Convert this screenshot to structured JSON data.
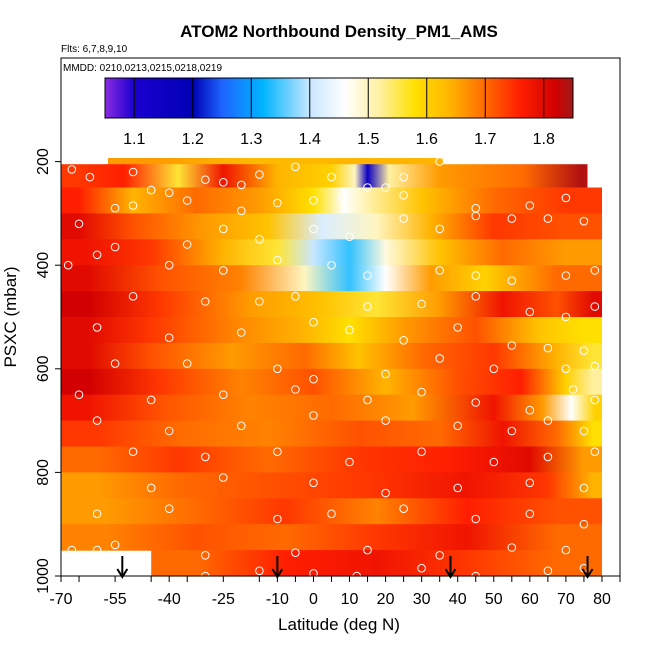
{
  "chart_data": {
    "type": "heatmap",
    "title": "ATOM2 Northbound Density_PM1_AMS",
    "subtitle_flights": "Flts: 6,7,8,9,10",
    "subtitle_dates": "MMDD: 0210,0213,0215,0218,0219",
    "xlabel": "Latitude (deg N)",
    "ylabel": "PSXC (mbar)",
    "xlim": [
      -70,
      85
    ],
    "ylim": [
      1000,
      0
    ],
    "x_ticks": [
      "-70",
      "-55",
      "-40",
      "-25",
      "-10",
      "0",
      "10",
      "20",
      "30",
      "40",
      "50",
      "60",
      "70",
      "80"
    ],
    "x_tick_values": [
      -70,
      -55,
      -40,
      -25,
      -10,
      0,
      10,
      20,
      30,
      40,
      50,
      60,
      70,
      80
    ],
    "y_ticks": [
      "200",
      "400",
      "600",
      "800",
      "1000"
    ],
    "y_tick_values": [
      200,
      400,
      600,
      800,
      1000
    ],
    "colorbar": {
      "range": [
        1.05,
        1.85
      ],
      "ticks": [
        "1.1",
        "1.2",
        "1.3",
        "1.4",
        "1.5",
        "1.6",
        "1.7",
        "1.8"
      ],
      "tick_values": [
        1.1,
        1.2,
        1.3,
        1.4,
        1.5,
        1.6,
        1.7,
        1.8
      ],
      "stops": [
        {
          "v": 1.05,
          "c": "#8a2be2"
        },
        {
          "v": 1.1,
          "c": "#1a00d0"
        },
        {
          "v": 1.2,
          "c": "#0000b4"
        },
        {
          "v": 1.25,
          "c": "#1e64ff"
        },
        {
          "v": 1.32,
          "c": "#00b4ff"
        },
        {
          "v": 1.4,
          "c": "#c8e6ff"
        },
        {
          "v": 1.46,
          "c": "#ffffff"
        },
        {
          "v": 1.52,
          "c": "#fff0a0"
        },
        {
          "v": 1.58,
          "c": "#ffe000"
        },
        {
          "v": 1.64,
          "c": "#ffb400"
        },
        {
          "v": 1.7,
          "c": "#ff6a00"
        },
        {
          "v": 1.76,
          "c": "#ff1e00"
        },
        {
          "v": 1.82,
          "c": "#d20000"
        },
        {
          "v": 1.85,
          "c": "#a01a1a"
        }
      ]
    },
    "bands": [
      {
        "p_top": 165,
        "p_bot": 205,
        "segments": [
          [
            -57,
            -30,
            1.66
          ],
          [
            -30,
            0,
            1.63
          ],
          [
            0,
            36,
            1.64
          ]
        ]
      },
      {
        "p_top": 205,
        "p_bot": 250,
        "segments": [
          [
            -70,
            -60,
            1.74
          ],
          [
            -60,
            -45,
            1.76
          ],
          [
            -45,
            -30,
            1.56
          ],
          [
            -30,
            -20,
            1.78
          ],
          [
            -20,
            0,
            1.64
          ],
          [
            0,
            10,
            1.6
          ],
          [
            10,
            13,
            1.5
          ],
          [
            13,
            17,
            1.15
          ],
          [
            17,
            25,
            1.52
          ],
          [
            25,
            45,
            1.66
          ],
          [
            45,
            72,
            1.7
          ],
          [
            72,
            76,
            1.84
          ]
        ]
      },
      {
        "p_top": 250,
        "p_bot": 300,
        "segments": [
          [
            -70,
            -60,
            1.76
          ],
          [
            -60,
            -40,
            1.64
          ],
          [
            -40,
            -25,
            1.7
          ],
          [
            -25,
            -5,
            1.66
          ],
          [
            -5,
            5,
            1.58
          ],
          [
            5,
            12,
            1.46
          ],
          [
            12,
            20,
            1.52
          ],
          [
            20,
            40,
            1.62
          ],
          [
            40,
            60,
            1.7
          ],
          [
            60,
            80,
            1.74
          ]
        ]
      },
      {
        "p_top": 300,
        "p_bot": 350,
        "segments": [
          [
            -70,
            -60,
            1.8
          ],
          [
            -60,
            -40,
            1.72
          ],
          [
            -40,
            -20,
            1.66
          ],
          [
            -20,
            -5,
            1.62
          ],
          [
            -5,
            10,
            1.42
          ],
          [
            10,
            25,
            1.5
          ],
          [
            25,
            40,
            1.64
          ],
          [
            40,
            60,
            1.74
          ],
          [
            60,
            80,
            1.72
          ]
        ]
      },
      {
        "p_top": 350,
        "p_bot": 400,
        "segments": [
          [
            -70,
            -55,
            1.78
          ],
          [
            -55,
            -35,
            1.74
          ],
          [
            -35,
            -15,
            1.64
          ],
          [
            -15,
            -5,
            1.56
          ],
          [
            -5,
            5,
            1.4
          ],
          [
            5,
            15,
            1.34
          ],
          [
            15,
            25,
            1.48
          ],
          [
            25,
            45,
            1.62
          ],
          [
            45,
            60,
            1.7
          ],
          [
            60,
            80,
            1.66
          ]
        ]
      },
      {
        "p_top": 400,
        "p_bot": 450,
        "segments": [
          [
            -70,
            -55,
            1.8
          ],
          [
            -55,
            -30,
            1.72
          ],
          [
            -30,
            -10,
            1.68
          ],
          [
            -10,
            5,
            1.5
          ],
          [
            5,
            15,
            1.34
          ],
          [
            15,
            25,
            1.46
          ],
          [
            25,
            40,
            1.66
          ],
          [
            40,
            55,
            1.6
          ],
          [
            55,
            80,
            1.7
          ]
        ]
      },
      {
        "p_top": 450,
        "p_bot": 500,
        "segments": [
          [
            -70,
            -55,
            1.82
          ],
          [
            -55,
            -30,
            1.74
          ],
          [
            -30,
            -5,
            1.66
          ],
          [
            -5,
            10,
            1.62
          ],
          [
            10,
            25,
            1.56
          ],
          [
            25,
            45,
            1.66
          ],
          [
            45,
            60,
            1.78
          ],
          [
            60,
            75,
            1.72
          ],
          [
            75,
            80,
            1.8
          ]
        ]
      },
      {
        "p_top": 500,
        "p_bot": 550,
        "segments": [
          [
            -70,
            -55,
            1.8
          ],
          [
            -55,
            -35,
            1.74
          ],
          [
            -35,
            -10,
            1.68
          ],
          [
            -10,
            5,
            1.64
          ],
          [
            5,
            15,
            1.58
          ],
          [
            15,
            35,
            1.66
          ],
          [
            35,
            55,
            1.72
          ],
          [
            55,
            70,
            1.62
          ],
          [
            70,
            80,
            1.58
          ]
        ]
      },
      {
        "p_top": 550,
        "p_bot": 600,
        "segments": [
          [
            -70,
            -55,
            1.8
          ],
          [
            -55,
            -35,
            1.72
          ],
          [
            -35,
            -10,
            1.66
          ],
          [
            -10,
            5,
            1.7
          ],
          [
            5,
            20,
            1.62
          ],
          [
            20,
            40,
            1.7
          ],
          [
            40,
            60,
            1.74
          ],
          [
            60,
            75,
            1.64
          ],
          [
            75,
            80,
            1.56
          ]
        ]
      },
      {
        "p_top": 600,
        "p_bot": 650,
        "segments": [
          [
            -70,
            -55,
            1.82
          ],
          [
            -55,
            -30,
            1.74
          ],
          [
            -30,
            -10,
            1.68
          ],
          [
            -10,
            10,
            1.72
          ],
          [
            10,
            30,
            1.64
          ],
          [
            30,
            50,
            1.72
          ],
          [
            50,
            65,
            1.76
          ],
          [
            65,
            75,
            1.6
          ],
          [
            75,
            80,
            1.52
          ]
        ]
      },
      {
        "p_top": 650,
        "p_bot": 700,
        "segments": [
          [
            -70,
            -55,
            1.78
          ],
          [
            -55,
            -30,
            1.72
          ],
          [
            -30,
            -5,
            1.68
          ],
          [
            -5,
            15,
            1.7
          ],
          [
            15,
            40,
            1.66
          ],
          [
            40,
            60,
            1.78
          ],
          [
            60,
            67,
            1.66
          ],
          [
            67,
            76,
            1.46
          ],
          [
            76,
            80,
            1.6
          ]
        ]
      },
      {
        "p_top": 700,
        "p_bot": 750,
        "segments": [
          [
            -70,
            -50,
            1.74
          ],
          [
            -50,
            -25,
            1.7
          ],
          [
            -25,
            0,
            1.68
          ],
          [
            0,
            25,
            1.72
          ],
          [
            25,
            45,
            1.7
          ],
          [
            45,
            60,
            1.78
          ],
          [
            60,
            75,
            1.7
          ],
          [
            75,
            80,
            1.58
          ]
        ]
      },
      {
        "p_top": 750,
        "p_bot": 800,
        "segments": [
          [
            -70,
            -50,
            1.7
          ],
          [
            -50,
            -25,
            1.74
          ],
          [
            -25,
            0,
            1.7
          ],
          [
            0,
            25,
            1.74
          ],
          [
            25,
            50,
            1.76
          ],
          [
            50,
            70,
            1.8
          ],
          [
            70,
            80,
            1.66
          ]
        ]
      },
      {
        "p_top": 800,
        "p_bot": 850,
        "segments": [
          [
            -70,
            -50,
            1.66
          ],
          [
            -50,
            -25,
            1.7
          ],
          [
            -25,
            0,
            1.72
          ],
          [
            0,
            30,
            1.74
          ],
          [
            30,
            55,
            1.78
          ],
          [
            55,
            75,
            1.74
          ],
          [
            75,
            80,
            1.64
          ]
        ]
      },
      {
        "p_top": 850,
        "p_bot": 900,
        "segments": [
          [
            -70,
            -45,
            1.66
          ],
          [
            -45,
            -20,
            1.7
          ],
          [
            -20,
            5,
            1.74
          ],
          [
            5,
            30,
            1.68
          ],
          [
            30,
            55,
            1.76
          ],
          [
            55,
            80,
            1.72
          ]
        ]
      },
      {
        "p_top": 900,
        "p_bot": 950,
        "segments": [
          [
            -70,
            -45,
            1.68
          ],
          [
            -45,
            -20,
            1.72
          ],
          [
            -20,
            5,
            1.7
          ],
          [
            5,
            30,
            1.74
          ],
          [
            30,
            55,
            1.78
          ],
          [
            55,
            80,
            1.7
          ]
        ]
      },
      {
        "p_top": 950,
        "p_bot": 1000,
        "segments": [
          [
            -45,
            -20,
            1.7
          ],
          [
            -20,
            5,
            1.76
          ],
          [
            5,
            30,
            1.78
          ],
          [
            30,
            55,
            1.74
          ],
          [
            55,
            80,
            1.7
          ]
        ]
      }
    ],
    "points": [
      [
        -67,
        215
      ],
      [
        -62,
        230
      ],
      [
        -58,
        190
      ],
      [
        -50,
        220
      ],
      [
        -45,
        255
      ],
      [
        -40,
        260
      ],
      [
        -30,
        235
      ],
      [
        -25,
        240
      ],
      [
        -20,
        245
      ],
      [
        -15,
        225
      ],
      [
        -5,
        210
      ],
      [
        5,
        230
      ],
      [
        15,
        250
      ],
      [
        20,
        250
      ],
      [
        25,
        230
      ],
      [
        35,
        200
      ],
      [
        -55,
        290
      ],
      [
        -50,
        285
      ],
      [
        -35,
        275
      ],
      [
        -20,
        295
      ],
      [
        -10,
        280
      ],
      [
        0,
        275
      ],
      [
        8,
        270
      ],
      [
        25,
        265
      ],
      [
        45,
        290
      ],
      [
        60,
        285
      ],
      [
        70,
        270
      ],
      [
        -65,
        320
      ],
      [
        -55,
        365
      ],
      [
        -35,
        360
      ],
      [
        -25,
        330
      ],
      [
        -15,
        350
      ],
      [
        0,
        330
      ],
      [
        10,
        345
      ],
      [
        25,
        310
      ],
      [
        35,
        330
      ],
      [
        45,
        305
      ],
      [
        55,
        310
      ],
      [
        65,
        310
      ],
      [
        75,
        315
      ],
      [
        -68,
        400
      ],
      [
        -60,
        380
      ],
      [
        -40,
        400
      ],
      [
        -25,
        410
      ],
      [
        -10,
        390
      ],
      [
        5,
        400
      ],
      [
        15,
        420
      ],
      [
        35,
        410
      ],
      [
        45,
        420
      ],
      [
        55,
        430
      ],
      [
        70,
        420
      ],
      [
        78,
        410
      ],
      [
        -50,
        460
      ],
      [
        -30,
        470
      ],
      [
        -15,
        470
      ],
      [
        -5,
        460
      ],
      [
        15,
        480
      ],
      [
        30,
        475
      ],
      [
        45,
        460
      ],
      [
        60,
        490
      ],
      [
        70,
        500
      ],
      [
        78,
        480
      ],
      [
        -60,
        520
      ],
      [
        -40,
        540
      ],
      [
        -20,
        530
      ],
      [
        0,
        510
      ],
      [
        10,
        525
      ],
      [
        25,
        545
      ],
      [
        40,
        520
      ],
      [
        55,
        555
      ],
      [
        65,
        560
      ],
      [
        75,
        565
      ],
      [
        -55,
        590
      ],
      [
        -35,
        590
      ],
      [
        -10,
        600
      ],
      [
        0,
        620
      ],
      [
        20,
        610
      ],
      [
        35,
        580
      ],
      [
        50,
        600
      ],
      [
        70,
        600
      ],
      [
        78,
        595
      ],
      [
        -65,
        650
      ],
      [
        -45,
        660
      ],
      [
        -25,
        650
      ],
      [
        -5,
        640
      ],
      [
        15,
        660
      ],
      [
        30,
        645
      ],
      [
        45,
        665
      ],
      [
        60,
        680
      ],
      [
        72,
        640
      ],
      [
        78,
        660
      ],
      [
        -60,
        700
      ],
      [
        -40,
        720
      ],
      [
        -20,
        710
      ],
      [
        0,
        690
      ],
      [
        20,
        700
      ],
      [
        40,
        710
      ],
      [
        55,
        720
      ],
      [
        65,
        700
      ],
      [
        75,
        720
      ],
      [
        -50,
        760
      ],
      [
        -30,
        770
      ],
      [
        -10,
        760
      ],
      [
        10,
        780
      ],
      [
        30,
        760
      ],
      [
        50,
        780
      ],
      [
        65,
        770
      ],
      [
        78,
        760
      ],
      [
        -45,
        830
      ],
      [
        -25,
        810
      ],
      [
        0,
        820
      ],
      [
        20,
        840
      ],
      [
        40,
        830
      ],
      [
        60,
        820
      ],
      [
        75,
        830
      ],
      [
        -60,
        880
      ],
      [
        -40,
        870
      ],
      [
        -10,
        890
      ],
      [
        5,
        880
      ],
      [
        25,
        870
      ],
      [
        45,
        890
      ],
      [
        60,
        880
      ],
      [
        75,
        900
      ],
      [
        -67,
        950
      ],
      [
        -60,
        950
      ],
      [
        -55,
        940
      ],
      [
        -30,
        960
      ],
      [
        -5,
        955
      ],
      [
        15,
        950
      ],
      [
        35,
        960
      ],
      [
        55,
        945
      ],
      [
        70,
        950
      ],
      [
        -30,
        1000
      ],
      [
        -15,
        990
      ],
      [
        0,
        995
      ],
      [
        12,
        1000
      ],
      [
        30,
        985
      ],
      [
        45,
        1000
      ],
      [
        65,
        990
      ],
      [
        75,
        985
      ]
    ],
    "arrows_x": [
      -53,
      -10,
      38,
      76
    ]
  }
}
